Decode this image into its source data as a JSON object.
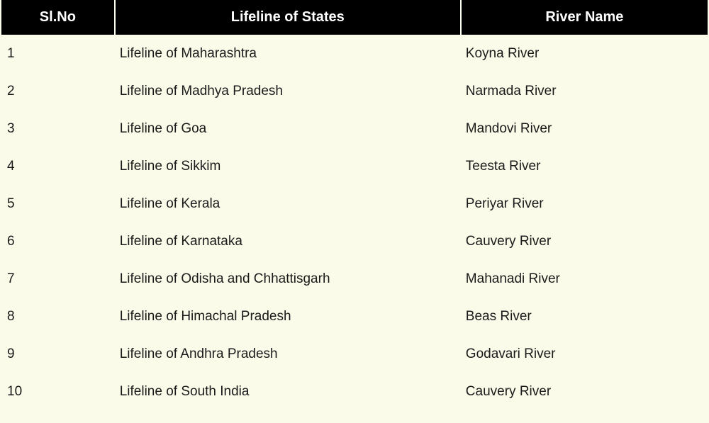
{
  "table": {
    "background_color": "#fbfbe9",
    "header_bg": "#000000",
    "header_fg": "#ffffff",
    "header_fontsize": 20,
    "header_fontweight": 700,
    "body_fontsize": 19,
    "body_fg": "#1a1a1a",
    "columns": [
      {
        "key": "slno",
        "label": "Sl.No",
        "width_pct": 16,
        "align_header": "center",
        "align_body": "left"
      },
      {
        "key": "lifeline",
        "label": "Lifeline of States",
        "width_pct": 49,
        "align_header": "center",
        "align_body": "left"
      },
      {
        "key": "river",
        "label": "River Name",
        "width_pct": 35,
        "align_header": "center",
        "align_body": "left"
      }
    ],
    "rows": [
      {
        "slno": "1",
        "lifeline": "Lifeline of Maharashtra",
        "river": "Koyna River"
      },
      {
        "slno": "2",
        "lifeline": "Lifeline of Madhya Pradesh",
        "river": "Narmada River"
      },
      {
        "slno": "3",
        "lifeline": "Lifeline of Goa",
        "river": "Mandovi River"
      },
      {
        "slno": "4",
        "lifeline": "Lifeline of Sikkim",
        "river": "Teesta River"
      },
      {
        "slno": "5",
        "lifeline": "Lifeline of Kerala",
        "river": "Periyar River"
      },
      {
        "slno": "6",
        "lifeline": "Lifeline of Karnataka",
        "river": "Cauvery River"
      },
      {
        "slno": "7",
        "lifeline": "Lifeline of Odisha and Chhattisgarh",
        "river": "Mahanadi River"
      },
      {
        "slno": "8",
        "lifeline": "Lifeline of Himachal Pradesh",
        "river": "Beas River"
      },
      {
        "slno": "9",
        "lifeline": "Lifeline of Andhra Pradesh",
        "river": "Godavari River"
      },
      {
        "slno": "10",
        "lifeline": "Lifeline of South India",
        "river": "Cauvery River"
      }
    ]
  }
}
